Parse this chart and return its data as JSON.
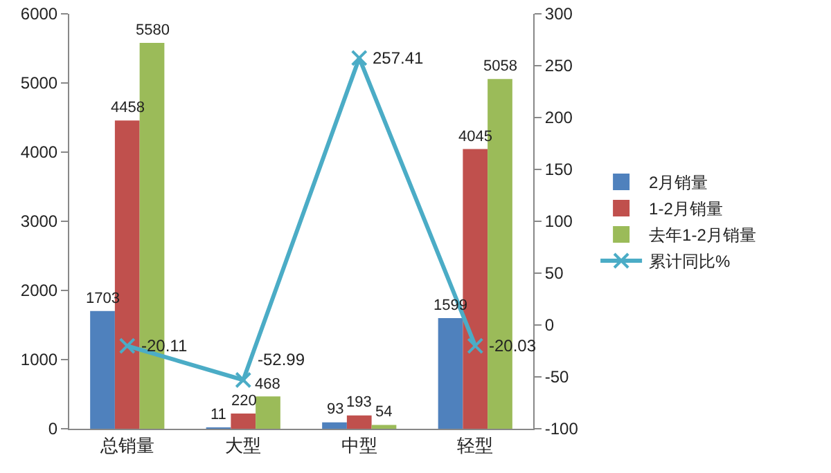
{
  "chart_data": {
    "type": "bar",
    "categories": [
      "总销量",
      "大型",
      "中型",
      "轻型"
    ],
    "series": [
      {
        "name": "2月销量",
        "color": "#4f81bd",
        "values": [
          1703,
          11,
          93,
          1599
        ]
      },
      {
        "name": "1-2月销量",
        "color": "#c0504d",
        "values": [
          4458,
          220,
          193,
          4045
        ]
      },
      {
        "name": "去年1-2月销量",
        "color": "#9bbb59",
        "values": [
          5580,
          468,
          54,
          5058
        ]
      },
      {
        "name": "累计同比%",
        "type": "line",
        "axis": "y2",
        "color": "#4bacc6",
        "marker": "cross",
        "values": [
          -20.11,
          -52.99,
          257.41,
          -20.03
        ]
      }
    ],
    "ylim": [
      0,
      6000
    ],
    "yticks": [
      0,
      1000,
      2000,
      3000,
      4000,
      5000,
      6000
    ],
    "y2lim": [
      -100,
      300
    ],
    "y2ticks": [
      -100,
      -50,
      0,
      50,
      100,
      150,
      200,
      250,
      300
    ],
    "data_labels": true,
    "grid": false,
    "legend": "right"
  }
}
